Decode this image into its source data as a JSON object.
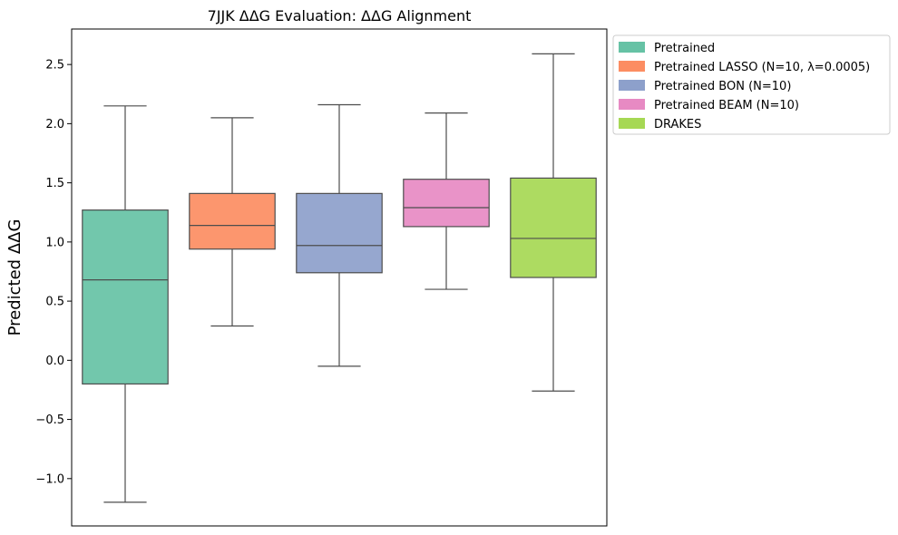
{
  "chart_data": {
    "type": "boxplot",
    "title": "7JJK ΔΔG Evaluation: ΔΔG Alignment",
    "xlabel": "",
    "ylabel": "Predicted ΔΔG",
    "ylim": [
      -1.4,
      2.8
    ],
    "yticks": [
      -1.0,
      -0.5,
      0.0,
      0.5,
      1.0,
      1.5,
      2.0,
      2.5
    ],
    "ytick_labels": [
      "−1.0",
      "−0.5",
      "0.0",
      "0.5",
      "1.0",
      "1.5",
      "2.0",
      "2.5"
    ],
    "legend_position": "outside-right-top",
    "grid": false,
    "series": [
      {
        "name": "Pretrained",
        "color": "#66c2a5",
        "whisker_low": -1.2,
        "q1": -0.2,
        "median": 0.68,
        "q3": 1.27,
        "whisker_high": 2.15
      },
      {
        "name": "Pretrained LASSO (N=10, λ=0.0005)",
        "color": "#fc8d62",
        "whisker_low": 0.29,
        "q1": 0.94,
        "median": 1.14,
        "q3": 1.41,
        "whisker_high": 2.05
      },
      {
        "name": "Pretrained BON (N=10)",
        "color": "#8da0cb",
        "whisker_low": -0.05,
        "q1": 0.74,
        "median": 0.97,
        "q3": 1.41,
        "whisker_high": 2.16
      },
      {
        "name": "Pretrained BEAM (N=10)",
        "color": "#e78ac3",
        "whisker_low": 0.6,
        "q1": 1.13,
        "median": 1.29,
        "q3": 1.53,
        "whisker_high": 2.09
      },
      {
        "name": "DRAKES",
        "color": "#a6d854",
        "whisker_low": -0.26,
        "q1": 0.7,
        "median": 1.03,
        "q3": 1.54,
        "whisker_high": 2.59
      }
    ]
  }
}
